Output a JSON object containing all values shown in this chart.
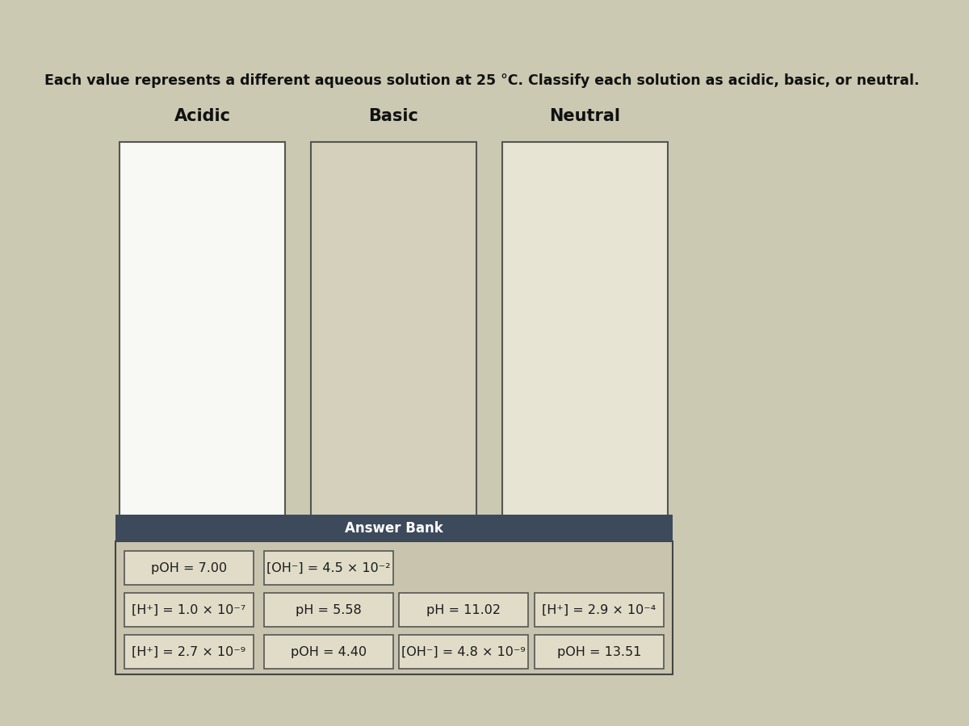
{
  "title": "Each value represents a different aqueous solution at 25 °C. Classify each solution as acidic, basic, or neutral.",
  "bg_outer_top": "#6b6b6b",
  "bg_outer_bottom": "#1a1a1a",
  "bg_main": "#ccc9b2",
  "box_bg_white": "#f5f5f0",
  "box_bg_textured": "#d8d4be",
  "answer_bank_header_bg": "#3d4a5c",
  "answer_bank_body_bg": "#c8c4ae",
  "answer_bank_border": "#444444",
  "columns": [
    "Acidic",
    "Basic",
    "Neutral"
  ],
  "answer_bank_title": "Answer Bank",
  "items": [
    {
      "text": "[H⁺] = 2.7 × 10⁻⁹",
      "row": 0,
      "col": 0
    },
    {
      "text": "pOH = 4.40",
      "row": 0,
      "col": 1
    },
    {
      "text": "[OH⁻] = 4.8 × 10⁻⁹",
      "row": 0,
      "col": 2
    },
    {
      "text": "pOH = 13.51",
      "row": 0,
      "col": 3
    },
    {
      "text": "[H⁺] = 1.0 × 10⁻⁷",
      "row": 1,
      "col": 0
    },
    {
      "text": "pH = 5.58",
      "row": 1,
      "col": 1
    },
    {
      "text": "pH = 11.02",
      "row": 1,
      "col": 2
    },
    {
      "text": "[H⁺] = 2.9 × 10⁻⁴",
      "row": 1,
      "col": 3
    },
    {
      "text": "pOH = 7.00",
      "row": 2,
      "col": 0
    },
    {
      "text": "[OH⁻] = 4.5 × 10⁻²",
      "row": 2,
      "col": 1
    }
  ],
  "item_box_color": "#e0dcc8",
  "item_border_color": "#555555",
  "item_text_color": "#1a1a1a",
  "column_header_fontsize": 15,
  "title_fontsize": 12.5,
  "item_fontsize": 11.5
}
